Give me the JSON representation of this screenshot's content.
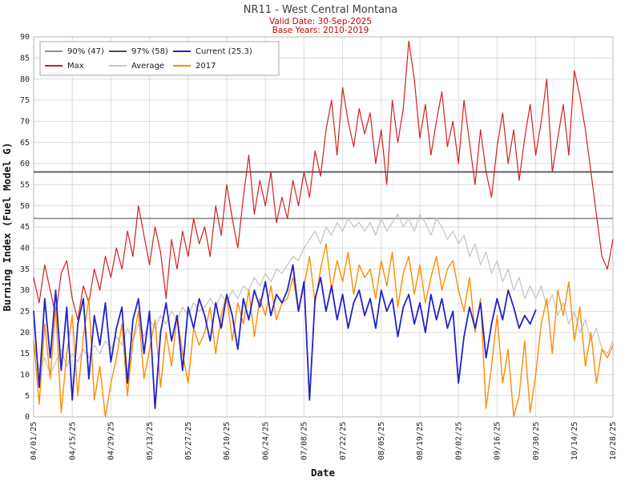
{
  "header": {
    "title": "NR11 - West Central Montana",
    "valid_date": "Valid Date: 30-Sep-2025",
    "base_years": "Base Years: 2010-2019"
  },
  "chart_data": {
    "type": "line",
    "title": "NR11 - West Central Montana",
    "xlabel": "Date",
    "ylabel": "Burning Index (Fuel Model G)",
    "ylim": [
      0,
      90
    ],
    "ytick_step": 5,
    "grid": true,
    "legend_position": "top-left",
    "x_tick_labels": [
      "04/01/25",
      "04/15/25",
      "04/29/25",
      "05/13/25",
      "05/27/25",
      "06/10/25",
      "06/24/25",
      "07/08/25",
      "07/22/25",
      "08/05/25",
      "08/19/25",
      "09/02/25",
      "09/16/25",
      "09/30/25",
      "10/14/25",
      "10/28/25"
    ],
    "x_tick_days": [
      0,
      14,
      28,
      42,
      56,
      70,
      84,
      98,
      112,
      126,
      140,
      154,
      168,
      182,
      196,
      210
    ],
    "x_start_day": 0,
    "x_step_days": 2,
    "total_days": 210,
    "thresholds": [
      {
        "label": "90% (47)",
        "value": 47,
        "color": "#909090"
      },
      {
        "label": "97% (58)",
        "value": 58,
        "color": "#4d4d4d"
      }
    ],
    "series": [
      {
        "name": "Max",
        "color": "#d41f1f",
        "stroke_width": 1.2,
        "z": 2,
        "values": [
          33,
          27,
          36,
          30,
          24,
          34,
          37,
          28,
          23,
          31,
          27,
          35,
          30,
          38,
          33,
          40,
          35,
          44,
          38,
          50,
          43,
          36,
          45,
          39,
          28,
          42,
          35,
          44,
          38,
          47,
          41,
          45,
          38,
          50,
          43,
          55,
          47,
          40,
          52,
          62,
          48,
          56,
          50,
          58,
          46,
          52,
          47,
          56,
          50,
          58,
          52,
          63,
          57,
          68,
          75,
          62,
          78,
          70,
          64,
          73,
          67,
          72,
          60,
          68,
          55,
          75,
          65,
          73,
          89,
          80,
          66,
          74,
          62,
          70,
          77,
          64,
          70,
          60,
          75,
          65,
          55,
          68,
          58,
          52,
          64,
          72,
          60,
          68,
          56,
          66,
          74,
          62,
          70,
          80,
          58,
          66,
          74,
          62,
          82,
          76,
          68,
          58,
          48,
          38,
          35,
          42
        ]
      },
      {
        "name": "Average",
        "color": "#c6c6c6",
        "stroke_width": 1.3,
        "z": 1,
        "values": [
          18,
          11,
          14,
          10,
          13,
          16,
          12,
          15,
          13,
          16,
          14,
          17,
          15,
          18,
          16,
          19,
          17,
          21,
          18,
          22,
          19,
          23,
          21,
          24,
          22,
          25,
          23,
          26,
          24,
          27,
          25,
          26,
          28,
          26,
          29,
          27,
          30,
          28,
          31,
          30,
          33,
          31,
          34,
          32,
          35,
          34,
          36,
          38,
          37,
          40,
          42,
          44,
          41,
          45,
          43,
          46,
          44,
          47,
          45,
          46,
          44,
          46,
          43,
          47,
          44,
          46,
          48,
          45,
          47,
          44,
          48,
          46,
          43,
          47,
          45,
          42,
          44,
          41,
          43,
          38,
          41,
          36,
          39,
          34,
          37,
          32,
          35,
          30,
          33,
          28,
          31,
          28,
          31,
          26,
          29,
          24,
          27,
          22,
          25,
          20,
          23,
          18,
          21,
          16,
          15,
          18
        ]
      },
      {
        "name": "Current (25.3)",
        "color": "#2222cc",
        "stroke_width": 1.8,
        "z": 4,
        "values": [
          25,
          7,
          28,
          14,
          30,
          11,
          26,
          4,
          22,
          28,
          9,
          24,
          17,
          27,
          13,
          21,
          26,
          8,
          23,
          28,
          15,
          25,
          2,
          20,
          27,
          18,
          24,
          11,
          26,
          21,
          28,
          24,
          18,
          27,
          21,
          29,
          24,
          16,
          28,
          23,
          30,
          26,
          32,
          24,
          29,
          27,
          30,
          36,
          25,
          32,
          4,
          28,
          33,
          25,
          31,
          23,
          29,
          21,
          27,
          30,
          24,
          28,
          21,
          30,
          25,
          28,
          19,
          26,
          29,
          22,
          27,
          20,
          29,
          23,
          28,
          21,
          25,
          8,
          19,
          26,
          21,
          27,
          14,
          22,
          28,
          23,
          30,
          26,
          21,
          24,
          22,
          25.3,
          null,
          null,
          null,
          null,
          null,
          null,
          null,
          null,
          null,
          null,
          null,
          null,
          null,
          null
        ]
      },
      {
        "name": "2017",
        "color": "#ff8c00",
        "stroke_width": 1.4,
        "z": 3,
        "values": [
          18,
          3,
          22,
          9,
          26,
          1,
          15,
          24,
          5,
          19,
          28,
          4,
          12,
          0,
          8,
          14,
          22,
          5,
          18,
          25,
          9,
          16,
          23,
          7,
          20,
          12,
          24,
          15,
          8,
          21,
          17,
          20,
          26,
          15,
          24,
          29,
          18,
          27,
          22,
          30,
          19,
          28,
          24,
          31,
          23,
          27,
          28,
          33,
          25,
          31,
          38,
          27,
          35,
          41,
          30,
          37,
          32,
          39,
          29,
          36,
          33,
          35,
          28,
          37,
          31,
          39,
          26,
          34,
          38,
          29,
          36,
          27,
          33,
          38,
          30,
          35,
          37,
          30,
          25,
          33,
          20,
          28,
          2,
          12,
          24,
          8,
          16,
          0,
          5,
          18,
          1,
          10,
          22,
          28,
          15,
          30,
          24,
          32,
          18,
          26,
          12,
          20,
          8,
          16,
          14,
          17
        ]
      }
    ],
    "legend": {
      "items": [
        {
          "label": "90% (47)",
          "color": "#909090"
        },
        {
          "label": "97% (58)",
          "color": "#4d4d4d"
        },
        {
          "label": "Current (25.3)",
          "color": "#2222cc"
        },
        {
          "label": "Max",
          "color": "#d41f1f"
        },
        {
          "label": "Average",
          "color": "#c6c6c6"
        },
        {
          "label": "2017",
          "color": "#ff8c00"
        }
      ]
    }
  }
}
